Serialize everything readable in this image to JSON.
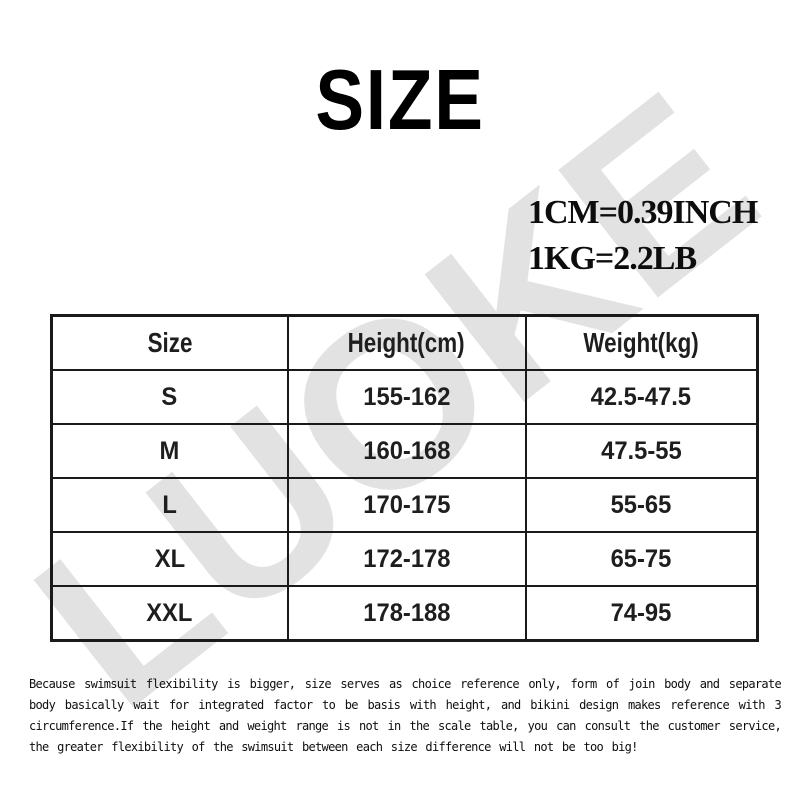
{
  "page": {
    "title": "SIZE",
    "watermark": "LUOKE",
    "background": "#ffffff"
  },
  "conversions": {
    "cm_inch": "1CM=0.39INCH",
    "kg_lb": "1KG=2.2LB"
  },
  "size_table": {
    "headers": [
      "Size",
      "Height(cm)",
      "Weight(kg)"
    ],
    "rows": [
      [
        "S",
        "155-162",
        "42.5-47.5"
      ],
      [
        "M",
        "160-168",
        "47.5-55"
      ],
      [
        "L",
        "170-175",
        "55-65"
      ],
      [
        "XL",
        "172-178",
        "65-75"
      ],
      [
        "XXL",
        "178-188",
        "74-95"
      ]
    ]
  },
  "note": {
    "lines": [
      "Because swimsuit flexibility is bigger, size serves as choice reference only, form of join body and separate",
      "body basically wait for integrated factor to be basis with height, and bikini design makes reference with 3",
      "circumference.If the height and weight range is not in the scale table, you can consult the customer service,",
      "the greater flexibility of the swimsuit between each size difference will not be too big!"
    ]
  },
  "colors": {
    "watermark": "#e2e2e2",
    "table_border": "#1a1a1a",
    "text": "#0e0e0e"
  },
  "chart_data": {
    "type": "table",
    "title": "SIZE",
    "columns": [
      "Size",
      "Height(cm)",
      "Weight(kg)"
    ],
    "rows": [
      [
        "S",
        "155-162",
        "42.5-47.5"
      ],
      [
        "M",
        "160-168",
        "47.5-55"
      ],
      [
        "L",
        "170-175",
        "55-65"
      ],
      [
        "XL",
        "172-178",
        "65-75"
      ],
      [
        "XXL",
        "178-188",
        "74-95"
      ]
    ],
    "unit_notes": [
      "1CM=0.39INCH",
      "1KG=2.2LB"
    ],
    "footnote": "Because swimsuit flexibility is bigger, size serves as choice reference only, form of join body and separate body basically wait for integrated factor to be basis with height, and bikini design makes reference with 3 circumference.If the height and weight range is not in the scale table, you can consult the customer service, the greater flexibility of the swimsuit between each size difference will not be too big!"
  }
}
